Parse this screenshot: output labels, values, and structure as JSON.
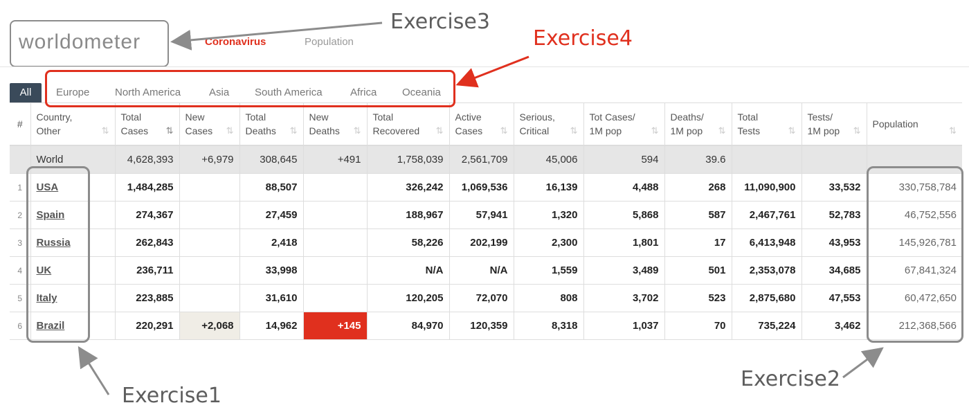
{
  "header": {
    "logo": "worldometer",
    "nav": [
      "Coronavirus",
      "Population"
    ]
  },
  "annotations": {
    "exercise1": "Exercise1",
    "exercise2": "Exercise2",
    "exercise3": "Exercise3",
    "exercise4": "Exercise4"
  },
  "tabs": [
    "All",
    "Europe",
    "North America",
    "Asia",
    "South America",
    "Africa",
    "Oceania"
  ],
  "table": {
    "headers": {
      "idx": "#",
      "country": [
        "Country,",
        "Other"
      ],
      "total_cases": [
        "Total",
        "Cases"
      ],
      "new_cases": [
        "New",
        "Cases"
      ],
      "total_deaths": [
        "Total",
        "Deaths"
      ],
      "new_deaths": [
        "New",
        "Deaths"
      ],
      "total_recovered": [
        "Total",
        "Recovered"
      ],
      "active_cases": [
        "Active",
        "Cases"
      ],
      "serious": [
        "Serious,",
        "Critical"
      ],
      "cases_per_m": [
        "Tot Cases/",
        "1M pop"
      ],
      "deaths_per_m": [
        "Deaths/",
        "1M pop"
      ],
      "total_tests": [
        "Total",
        "Tests"
      ],
      "tests_per_m": [
        "Tests/",
        "1M pop"
      ],
      "population": "Population"
    },
    "world": {
      "country": "World",
      "total_cases": "4,628,393",
      "new_cases": "+6,979",
      "total_deaths": "308,645",
      "new_deaths": "+491",
      "total_recovered": "1,758,039",
      "active_cases": "2,561,709",
      "serious": "45,006",
      "cases_per_m": "594",
      "deaths_per_m": "39.6",
      "total_tests": "",
      "tests_per_m": "",
      "population": ""
    },
    "rows": [
      {
        "idx": "1",
        "country": "USA",
        "total_cases": "1,484,285",
        "new_cases": "",
        "total_deaths": "88,507",
        "new_deaths": "",
        "total_recovered": "326,242",
        "active_cases": "1,069,536",
        "serious": "16,139",
        "cases_per_m": "4,488",
        "deaths_per_m": "268",
        "total_tests": "11,090,900",
        "tests_per_m": "33,532",
        "population": "330,758,784"
      },
      {
        "idx": "2",
        "country": "Spain",
        "total_cases": "274,367",
        "new_cases": "",
        "total_deaths": "27,459",
        "new_deaths": "",
        "total_recovered": "188,967",
        "active_cases": "57,941",
        "serious": "1,320",
        "cases_per_m": "5,868",
        "deaths_per_m": "587",
        "total_tests": "2,467,761",
        "tests_per_m": "52,783",
        "population": "46,752,556"
      },
      {
        "idx": "3",
        "country": "Russia",
        "total_cases": "262,843",
        "new_cases": "",
        "total_deaths": "2,418",
        "new_deaths": "",
        "total_recovered": "58,226",
        "active_cases": "202,199",
        "serious": "2,300",
        "cases_per_m": "1,801",
        "deaths_per_m": "17",
        "total_tests": "6,413,948",
        "tests_per_m": "43,953",
        "population": "145,926,781"
      },
      {
        "idx": "4",
        "country": "UK",
        "total_cases": "236,711",
        "new_cases": "",
        "total_deaths": "33,998",
        "new_deaths": "",
        "total_recovered": "N/A",
        "active_cases": "N/A",
        "serious": "1,559",
        "cases_per_m": "3,489",
        "deaths_per_m": "501",
        "total_tests": "2,353,078",
        "tests_per_m": "34,685",
        "population": "67,841,324"
      },
      {
        "idx": "5",
        "country": "Italy",
        "total_cases": "223,885",
        "new_cases": "",
        "total_deaths": "31,610",
        "new_deaths": "",
        "total_recovered": "120,205",
        "active_cases": "72,070",
        "serious": "808",
        "cases_per_m": "3,702",
        "deaths_per_m": "523",
        "total_tests": "2,875,680",
        "tests_per_m": "47,553",
        "population": "60,472,650"
      },
      {
        "idx": "6",
        "country": "Brazil",
        "total_cases": "220,291",
        "new_cases": "+2,068",
        "total_deaths": "14,962",
        "new_deaths": "+145",
        "total_recovered": "84,970",
        "active_cases": "120,359",
        "serious": "8,318",
        "cases_per_m": "1,037",
        "deaths_per_m": "70",
        "total_tests": "735,224",
        "tests_per_m": "3,462",
        "population": "212,368,566"
      }
    ]
  },
  "colors": {
    "accent_red": "#e0301e",
    "annotation_grey": "#8c8c8c",
    "tab_active": "#3a4a5a"
  }
}
